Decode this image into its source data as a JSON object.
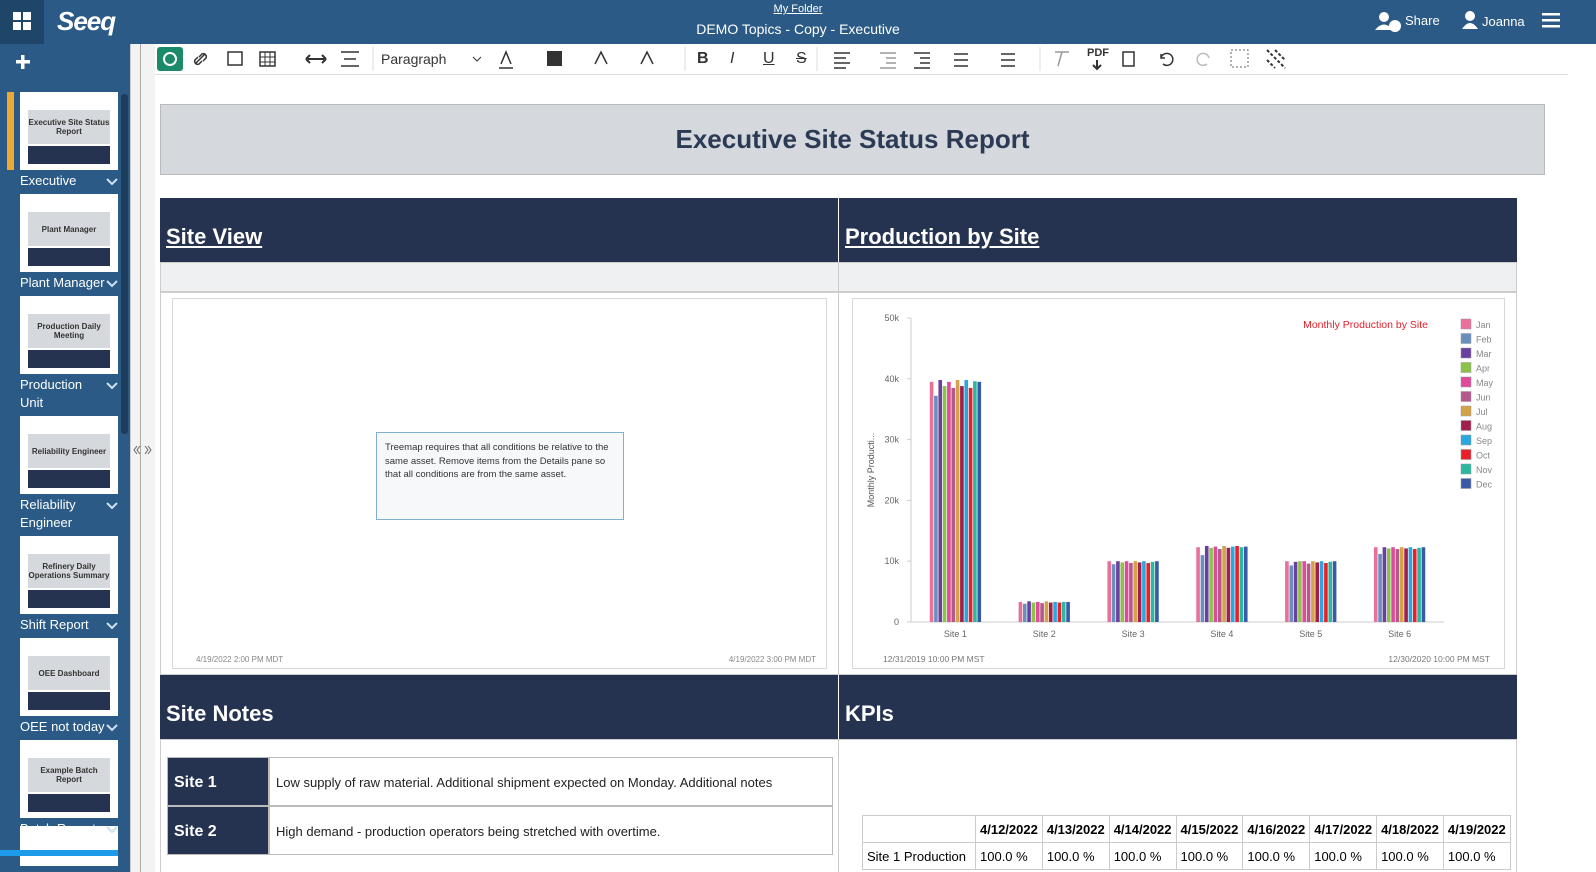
{
  "header": {
    "logo": "Seeq",
    "folder": "My Folder",
    "title": "DEMO Topics - Copy - Executive",
    "share": "Share",
    "user": "Joanna"
  },
  "sidebar": {
    "pages": [
      {
        "thumb": "Executive Site Status Report",
        "label": "Executive"
      },
      {
        "thumb": "Plant Manager",
        "label": "Plant Manager"
      },
      {
        "thumb": "Production Daily Meeting",
        "label": "Production Unit"
      },
      {
        "thumb": "Reliability Engineer",
        "label": "Reliability Engineer"
      },
      {
        "thumb": "Refinery Daily Operations Summary",
        "label": "Shift Report"
      },
      {
        "thumb": "OEE Dashboard",
        "label": "OEE not today"
      },
      {
        "thumb": "Example Batch Report",
        "label": "Batch Report"
      }
    ]
  },
  "toolbar": {
    "paragraph": "Paragraph",
    "format_buttons": [
      "B",
      "I",
      "U",
      "S"
    ],
    "pdf": "PDF"
  },
  "document": {
    "title": "Executive Site Status Report",
    "site_view": "Site View",
    "production_by_site": "Production by Site",
    "treemap_message": "Treemap requires that all conditions be relative to the same asset. Remove items from the Details pane so that all conditions are from the same asset.",
    "site_view_start": "4/19/2022 2:00 PM MDT",
    "site_view_end": "4/19/2022 3:00 PM MDT",
    "site_notes": "Site Notes",
    "kpis": "KPIs",
    "notes": [
      {
        "site": "Site 1",
        "text": "Low supply of raw material. Additional shipment expected on Monday. Additional notes"
      },
      {
        "site": "Site 2",
        "text": "High demand - production operators being stretched with overtime."
      }
    ],
    "kpi_table": {
      "dates": [
        "4/12/2022",
        "4/13/2022",
        "4/14/2022",
        "4/15/2022",
        "4/16/2022",
        "4/17/2022",
        "4/18/2022",
        "4/19/2022"
      ],
      "rows": [
        {
          "label": "Site 1 Production",
          "cells": [
            "100.0 %",
            "100.0 %",
            "100.0 %",
            "100.0 %",
            "100.0 %",
            "100.0 %",
            "100.0 %",
            "100.0 %"
          ]
        }
      ]
    }
  },
  "chart_data": {
    "type": "bar",
    "title": "Monthly Production by Site",
    "y_label": "Monthly Producti...",
    "start": "12/31/2019 10:00 PM MST",
    "end": "12/30/2020 10:00 PM MST",
    "categories": [
      "Site 1",
      "Site 2",
      "Site 3",
      "Site 4",
      "Site 5",
      "Site 6"
    ],
    "ylim": [
      0,
      50000
    ],
    "yticks": [
      0,
      {
        "value": 10000,
        "label": "10k"
      },
      {
        "value": 20000,
        "label": "20k"
      },
      {
        "value": 30000,
        "label": "30k"
      },
      {
        "value": 40000,
        "label": "40k"
      },
      {
        "value": 50000,
        "label": "50k"
      }
    ],
    "grid": false,
    "legend": "right",
    "series": [
      {
        "name": "Jan",
        "color": "#e8719a",
        "values": [
          39500,
          3300,
          10000,
          12300,
          10000,
          12300
        ]
      },
      {
        "name": "Feb",
        "color": "#6a8fbf",
        "values": [
          37200,
          3000,
          9500,
          11000,
          9300,
          11200
        ]
      },
      {
        "name": "Mar",
        "color": "#6b3fa0",
        "values": [
          39800,
          3400,
          10000,
          12500,
          9900,
          12300
        ]
      },
      {
        "name": "Apr",
        "color": "#8bc34a",
        "values": [
          38800,
          3200,
          9800,
          12200,
          10000,
          12100
        ]
      },
      {
        "name": "May",
        "color": "#e04a9a",
        "values": [
          39500,
          3300,
          10000,
          12400,
          10000,
          12300
        ]
      },
      {
        "name": "Jun",
        "color": "#b35a8a",
        "values": [
          38500,
          3100,
          9700,
          12000,
          9600,
          12000
        ]
      },
      {
        "name": "Jul",
        "color": "#d4a24a",
        "values": [
          39800,
          3400,
          10000,
          12500,
          10000,
          12300
        ]
      },
      {
        "name": "Aug",
        "color": "#a0204a",
        "values": [
          38800,
          3200,
          9800,
          12200,
          9800,
          12100
        ]
      },
      {
        "name": "Sep",
        "color": "#29a8e0",
        "values": [
          39800,
          3300,
          10000,
          12400,
          10000,
          12300
        ]
      },
      {
        "name": "Oct",
        "color": "#e8202a",
        "values": [
          38500,
          3200,
          9700,
          12500,
          9700,
          12000
        ]
      },
      {
        "name": "Nov",
        "color": "#2cb8a0",
        "values": [
          39600,
          3300,
          9900,
          12300,
          9900,
          12200
        ]
      },
      {
        "name": "Dec",
        "color": "#3a5aa8",
        "values": [
          39500,
          3300,
          10000,
          12400,
          10000,
          12300
        ]
      }
    ]
  }
}
